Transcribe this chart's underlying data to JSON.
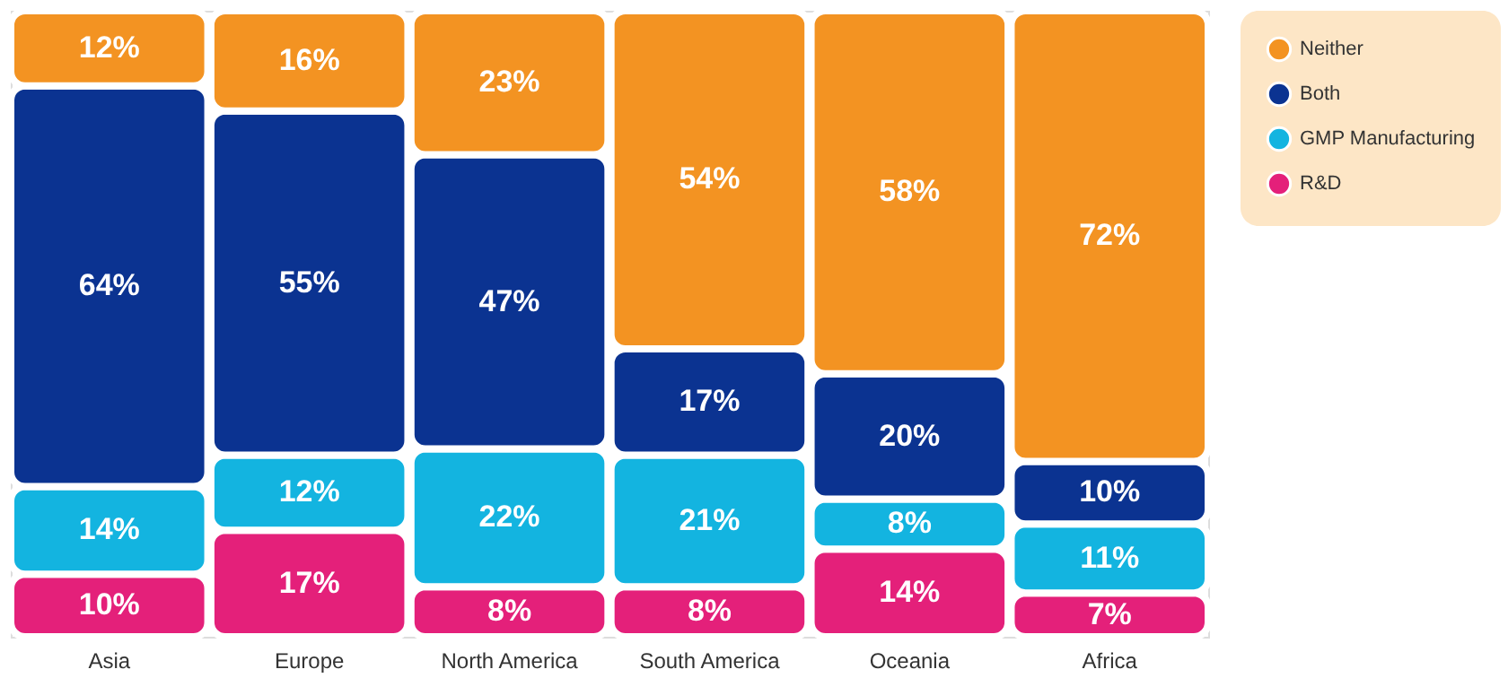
{
  "chart_data": {
    "type": "bar",
    "stacked": true,
    "categories": [
      "Asia",
      "Europe",
      "North America",
      "South America",
      "Oceania",
      "Africa"
    ],
    "series": [
      {
        "name": "R&D",
        "color": "#e4207a",
        "values": [
          10,
          17,
          8,
          8,
          14,
          7
        ],
        "value_labels": [
          "10%",
          "17%",
          "8%",
          "8%",
          "14%",
          "7%"
        ]
      },
      {
        "name": "GMP Manufacturing",
        "color": "#13b4e0",
        "values": [
          14,
          12,
          22,
          21,
          8,
          11
        ],
        "value_labels": [
          "14%",
          "12%",
          "22%",
          "21%",
          "8%",
          "11%"
        ]
      },
      {
        "name": "Both",
        "color": "#0b3391",
        "values": [
          64,
          55,
          47,
          17,
          20,
          10
        ],
        "value_labels": [
          "64%",
          "55%",
          "47%",
          "17%",
          "20%",
          "10%"
        ]
      },
      {
        "name": "Neither",
        "color": "#f39322",
        "values": [
          12,
          16,
          23,
          54,
          58,
          72
        ],
        "value_labels": [
          "12%",
          "16%",
          "23%",
          "54%",
          "58%",
          "72%"
        ]
      }
    ],
    "ylim": [
      0,
      100
    ],
    "tick_labels": "x",
    "legend": "right"
  }
}
